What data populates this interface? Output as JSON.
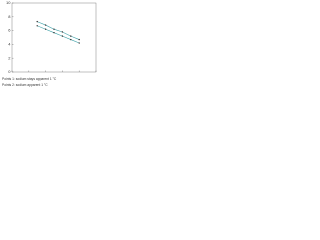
{
  "chart_data": {
    "type": "scatter",
    "xlim": [
      0,
      10
    ],
    "ylim": [
      0,
      10
    ],
    "yticks": [
      0,
      2,
      4,
      6,
      8,
      10
    ],
    "xticks": [
      0,
      2,
      4,
      6,
      8,
      10
    ],
    "series": [
      {
        "name": "Points 1: sodium stays apparent 1 °C",
        "color": "#3a9ea5",
        "x": [
          3,
          4,
          5,
          6,
          7,
          8
        ],
        "values": [
          7.3,
          6.8,
          6.2,
          5.8,
          5.2,
          4.7
        ]
      },
      {
        "name": "Points 2: sodium apparent 1 °C",
        "color": "#3a9ea5",
        "x": [
          3,
          4,
          5,
          6,
          7,
          8
        ],
        "values": [
          6.7,
          6.2,
          5.7,
          5.2,
          4.7,
          4.2
        ]
      }
    ]
  }
}
